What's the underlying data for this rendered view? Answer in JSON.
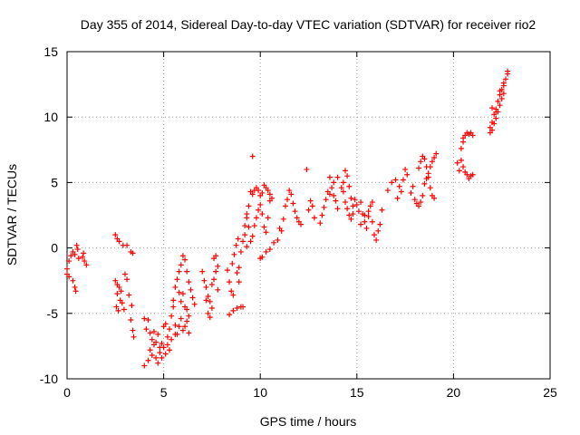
{
  "chart_data": {
    "type": "scatter",
    "title": "Day 355 of 2014, Sidereal Day-to-day VTEC variation (SDTVAR) for receiver rio2",
    "xlabel": "GPS time / hours",
    "ylabel": "SDTVAR / TECUs",
    "xlim": [
      0,
      25
    ],
    "ylim": [
      -10,
      15
    ],
    "xticks": [
      "0",
      "5",
      "10",
      "15",
      "20",
      "25"
    ],
    "yticks": [
      "-10",
      "-5",
      "0",
      "5",
      "10",
      "15"
    ],
    "grid": true,
    "marker": "plus",
    "marker_color": "#ff0000",
    "series": [
      {
        "values": [
          [
            0.0,
            -1.6
          ],
          [
            0.1,
            -1.0
          ],
          [
            0.2,
            -0.6
          ],
          [
            0.3,
            -0.3
          ],
          [
            0.4,
            -0.5
          ],
          [
            0.5,
            0.2
          ],
          [
            0.55,
            -0.1
          ],
          [
            0.6,
            -0.8
          ],
          [
            0.3,
            -2.5
          ],
          [
            0.4,
            -3.0
          ],
          [
            0.45,
            -3.3
          ],
          [
            0.0,
            -2.0
          ],
          [
            0.1,
            -2.2
          ],
          [
            0.8,
            -0.7
          ],
          [
            0.9,
            -1.0
          ],
          [
            1.0,
            -1.3
          ],
          [
            0.85,
            -0.4
          ],
          [
            2.5,
            1.0
          ],
          [
            2.7,
            0.5
          ],
          [
            2.9,
            0.2
          ],
          [
            2.6,
            0.7
          ],
          [
            3.1,
            0.2
          ],
          [
            3.3,
            -0.3
          ],
          [
            3.4,
            -0.4
          ],
          [
            2.5,
            -2.5
          ],
          [
            2.6,
            -2.8
          ],
          [
            2.6,
            -3.5
          ],
          [
            2.55,
            -4.5
          ],
          [
            2.65,
            -4.8
          ],
          [
            2.7,
            -3.0
          ],
          [
            2.75,
            -4.0
          ],
          [
            2.8,
            -3.3
          ],
          [
            2.85,
            -4.2
          ],
          [
            2.95,
            -4.7
          ],
          [
            3.0,
            -2.0
          ],
          [
            3.1,
            -2.4
          ],
          [
            3.2,
            -3.6
          ],
          [
            3.3,
            -5.5
          ],
          [
            3.4,
            -6.3
          ],
          [
            3.45,
            -6.8
          ],
          [
            3.35,
            -4.4
          ],
          [
            4.0,
            -5.4
          ],
          [
            4.1,
            -6.2
          ],
          [
            4.2,
            -5.5
          ],
          [
            4.3,
            -6.5
          ],
          [
            4.4,
            -7.0
          ],
          [
            4.5,
            -6.4
          ],
          [
            4.6,
            -7.2
          ],
          [
            4.7,
            -6.6
          ],
          [
            4.8,
            -7.6
          ],
          [
            4.9,
            -7.3
          ],
          [
            5.0,
            -6.0
          ],
          [
            5.1,
            -5.8
          ],
          [
            5.2,
            -6.8
          ],
          [
            5.3,
            -6.2
          ],
          [
            5.4,
            -5.2
          ],
          [
            5.5,
            -4.5
          ],
          [
            5.6,
            -5.9
          ],
          [
            5.7,
            -6.6
          ],
          [
            5.8,
            -6.0
          ],
          [
            5.9,
            -5.4
          ],
          [
            6.0,
            -6.3
          ],
          [
            6.1,
            -6.0
          ],
          [
            6.2,
            -5.6
          ],
          [
            6.3,
            -6.5
          ],
          [
            4.0,
            -9.0
          ],
          [
            4.2,
            -8.6
          ],
          [
            4.4,
            -8.2
          ],
          [
            4.6,
            -8.4
          ],
          [
            4.8,
            -8.0
          ],
          [
            5.0,
            -7.6
          ],
          [
            5.2,
            -7.4
          ],
          [
            5.4,
            -7.0
          ],
          [
            5.6,
            -6.6
          ],
          [
            4.3,
            -7.8
          ],
          [
            4.5,
            -7.4
          ],
          [
            4.7,
            -8.8
          ],
          [
            4.9,
            -8.4
          ],
          [
            5.1,
            -8.1
          ],
          [
            5.3,
            -7.8
          ],
          [
            5.5,
            -4.0
          ],
          [
            5.6,
            -3.0
          ],
          [
            5.7,
            -2.4
          ],
          [
            5.8,
            -1.8
          ],
          [
            5.9,
            -1.3
          ],
          [
            6.0,
            -0.6
          ],
          [
            6.1,
            -0.9
          ],
          [
            6.2,
            -1.8
          ],
          [
            6.3,
            -2.6
          ],
          [
            6.4,
            -3.2
          ],
          [
            6.5,
            -3.8
          ],
          [
            6.6,
            -4.3
          ],
          [
            5.8,
            -3.4
          ],
          [
            5.9,
            -4.1
          ],
          [
            6.0,
            -3.5
          ],
          [
            6.1,
            -4.5
          ],
          [
            6.2,
            -4.7
          ],
          [
            6.3,
            -5.2
          ],
          [
            7.0,
            -1.8
          ],
          [
            7.1,
            -2.5
          ],
          [
            7.2,
            -3.0
          ],
          [
            7.3,
            -3.7
          ],
          [
            7.4,
            -4.1
          ],
          [
            7.5,
            -4.6
          ],
          [
            7.2,
            -4.0
          ],
          [
            7.3,
            -5.0
          ],
          [
            7.4,
            -5.3
          ],
          [
            7.5,
            -2.8
          ],
          [
            7.6,
            -2.4
          ],
          [
            7.7,
            -1.8
          ],
          [
            7.8,
            -3.2
          ],
          [
            7.6,
            -0.8
          ],
          [
            7.7,
            -0.6
          ],
          [
            7.8,
            -1.4
          ],
          [
            8.3,
            -1.7
          ],
          [
            8.4,
            -2.6
          ],
          [
            8.5,
            -3.3
          ],
          [
            8.6,
            -3.6
          ],
          [
            8.55,
            -1.2
          ],
          [
            8.65,
            -0.5
          ],
          [
            8.75,
            0.2
          ],
          [
            8.85,
            0.7
          ],
          [
            8.4,
            -5.1
          ],
          [
            8.6,
            -4.8
          ],
          [
            8.8,
            -4.6
          ],
          [
            9.0,
            -4.5
          ],
          [
            9.1,
            -4.5
          ],
          [
            8.8,
            -1.9
          ],
          [
            8.9,
            -1.5
          ],
          [
            9.0,
            -0.3
          ],
          [
            9.1,
            0.5
          ],
          [
            9.2,
            1.0
          ],
          [
            9.3,
            0.1
          ],
          [
            8.9,
            -2.6
          ],
          [
            9.2,
            1.7
          ],
          [
            9.3,
            2.3
          ],
          [
            9.4,
            3.2
          ],
          [
            9.5,
            4.3
          ],
          [
            9.6,
            4.1
          ],
          [
            9.7,
            4.4
          ],
          [
            9.8,
            4.6
          ],
          [
            9.9,
            4.4
          ],
          [
            10.0,
            4.0
          ],
          [
            10.1,
            4.2
          ],
          [
            10.2,
            4.8
          ],
          [
            10.3,
            4.6
          ],
          [
            10.4,
            4.4
          ],
          [
            10.5,
            4.1
          ],
          [
            10.6,
            3.8
          ],
          [
            9.3,
            2.6
          ],
          [
            9.4,
            1.6
          ],
          [
            9.5,
            0.5
          ],
          [
            9.6,
            0.9
          ],
          [
            9.7,
            1.7
          ],
          [
            9.8,
            2.3
          ],
          [
            9.9,
            2.9
          ],
          [
            10.0,
            3.3
          ],
          [
            10.1,
            2.6
          ],
          [
            10.2,
            1.6
          ],
          [
            10.3,
            1.2
          ],
          [
            10.4,
            2.3
          ],
          [
            10.5,
            3.6
          ],
          [
            9.6,
            7.0
          ],
          [
            10.0,
            -0.8
          ],
          [
            10.1,
            -0.7
          ],
          [
            10.3,
            -0.3
          ],
          [
            10.5,
            -0.1
          ],
          [
            10.7,
            0.4
          ],
          [
            10.9,
            0.6
          ],
          [
            11.0,
            1.5
          ],
          [
            11.1,
            1.3
          ],
          [
            11.2,
            2.2
          ],
          [
            11.3,
            3.2
          ],
          [
            11.4,
            3.7
          ],
          [
            11.5,
            4.4
          ],
          [
            11.6,
            4.1
          ],
          [
            11.7,
            3.4
          ],
          [
            11.8,
            2.8
          ],
          [
            11.9,
            2.3
          ],
          [
            12.0,
            2.0
          ],
          [
            12.1,
            1.8
          ],
          [
            12.4,
            6.0
          ],
          [
            12.5,
            2.9
          ],
          [
            12.6,
            3.6
          ],
          [
            12.7,
            3.2
          ],
          [
            12.8,
            2.3
          ],
          [
            13.1,
            1.9
          ],
          [
            13.2,
            2.5
          ],
          [
            13.3,
            3.1
          ],
          [
            13.4,
            3.7
          ],
          [
            13.5,
            4.3
          ],
          [
            13.6,
            4.1
          ],
          [
            13.7,
            4.6
          ],
          [
            13.8,
            4.0
          ],
          [
            13.9,
            3.6
          ],
          [
            14.0,
            3.0
          ],
          [
            13.6,
            5.4
          ],
          [
            13.8,
            5.0
          ],
          [
            14.0,
            5.4
          ],
          [
            14.2,
            4.6
          ],
          [
            14.3,
            5.0
          ],
          [
            14.4,
            5.9
          ],
          [
            14.5,
            5.5
          ],
          [
            14.6,
            4.7
          ],
          [
            14.7,
            3.8
          ],
          [
            14.8,
            3.2
          ],
          [
            14.9,
            3.7
          ],
          [
            15.0,
            3.3
          ],
          [
            14.3,
            4.3
          ],
          [
            14.4,
            3.5
          ],
          [
            14.5,
            3.0
          ],
          [
            14.6,
            2.5
          ],
          [
            14.7,
            2.2
          ],
          [
            14.8,
            2.6
          ],
          [
            15.1,
            2.8
          ],
          [
            15.2,
            3.5
          ],
          [
            15.3,
            2.6
          ],
          [
            15.4,
            2.0
          ],
          [
            15.5,
            1.5
          ],
          [
            15.6,
            2.4
          ],
          [
            15.7,
            3.2
          ],
          [
            15.8,
            3.5
          ],
          [
            15.9,
            1.0
          ],
          [
            16.0,
            0.6
          ],
          [
            16.1,
            1.3
          ],
          [
            16.2,
            1.8
          ],
          [
            16.3,
            2.9
          ],
          [
            15.2,
            1.8
          ],
          [
            15.4,
            2.5
          ],
          [
            15.6,
            2.8
          ],
          [
            15.8,
            2.0
          ],
          [
            16.6,
            4.4
          ],
          [
            16.8,
            5.0
          ],
          [
            17.0,
            5.2
          ],
          [
            17.2,
            4.7
          ],
          [
            17.1,
            3.8
          ],
          [
            17.3,
            4.3
          ],
          [
            17.4,
            5.2
          ],
          [
            17.6,
            5.6
          ],
          [
            17.5,
            6.0
          ],
          [
            17.8,
            4.2
          ],
          [
            17.9,
            4.7
          ],
          [
            18.0,
            3.7
          ],
          [
            18.1,
            3.4
          ],
          [
            18.2,
            3.2
          ],
          [
            18.3,
            3.5
          ],
          [
            18.4,
            4.0
          ],
          [
            18.5,
            4.9
          ],
          [
            18.6,
            5.3
          ],
          [
            18.7,
            5.7
          ],
          [
            18.8,
            6.2
          ],
          [
            18.9,
            6.6
          ],
          [
            19.0,
            6.9
          ],
          [
            19.1,
            7.2
          ],
          [
            18.2,
            6.1
          ],
          [
            18.3,
            6.6
          ],
          [
            18.4,
            7.0
          ],
          [
            18.5,
            6.8
          ],
          [
            18.6,
            6.2
          ],
          [
            18.7,
            5.4
          ],
          [
            18.8,
            4.6
          ],
          [
            18.9,
            4.0
          ],
          [
            19.0,
            3.8
          ],
          [
            20.2,
            6.5
          ],
          [
            20.3,
            5.9
          ],
          [
            20.4,
            6.7
          ],
          [
            20.5,
            6.2
          ],
          [
            20.6,
            5.8
          ],
          [
            20.7,
            5.6
          ],
          [
            20.8,
            5.3
          ],
          [
            20.9,
            5.5
          ],
          [
            21.0,
            5.6
          ],
          [
            20.4,
            7.6
          ],
          [
            20.5,
            8.1
          ],
          [
            20.6,
            8.6
          ],
          [
            20.7,
            8.8
          ],
          [
            20.8,
            8.7
          ],
          [
            20.9,
            8.8
          ],
          [
            21.0,
            8.6
          ],
          [
            20.5,
            8.4
          ],
          [
            21.9,
            9.2
          ],
          [
            22.0,
            9.6
          ],
          [
            22.1,
            10.2
          ],
          [
            22.2,
            10.6
          ],
          [
            22.3,
            11.2
          ],
          [
            22.4,
            11.7
          ],
          [
            22.5,
            12.1
          ],
          [
            22.6,
            12.6
          ],
          [
            22.7,
            12.9
          ],
          [
            22.8,
            13.3
          ],
          [
            21.9,
            8.8
          ],
          [
            22.0,
            9.0
          ],
          [
            22.1,
            9.5
          ],
          [
            22.2,
            9.9
          ],
          [
            22.3,
            10.4
          ],
          [
            22.4,
            10.9
          ],
          [
            22.5,
            11.4
          ],
          [
            22.6,
            11.8
          ],
          [
            22.0,
            10.7
          ],
          [
            22.2,
            10.4
          ],
          [
            22.4,
            12.0
          ],
          [
            22.6,
            12.4
          ],
          [
            22.8,
            13.5
          ]
        ]
      }
    ]
  }
}
